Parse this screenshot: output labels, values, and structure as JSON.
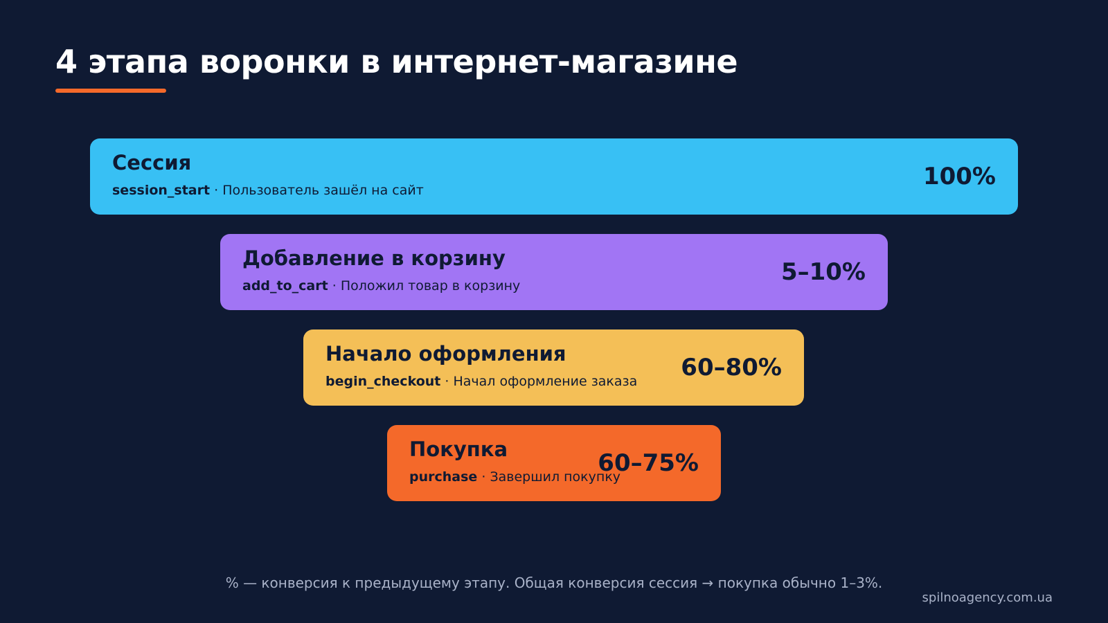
{
  "title": "4 этапа воронки в интернет-магазине",
  "colors": {
    "background": "#0f1a33",
    "accent": "#f4692a",
    "text_dark": "#0f1a33"
  },
  "stages": [
    {
      "name": "Сессия",
      "event": "session_start",
      "separator": " · ",
      "description": "Пользователь зашёл на сайт",
      "percent": "100%",
      "color": "#38c0f4"
    },
    {
      "name": "Добавление в корзину",
      "event": "add_to_cart",
      "separator": " · ",
      "description": "Положил товар в корзину",
      "percent": "5–10%",
      "color": "#a175f4"
    },
    {
      "name": "Начало оформления",
      "event": "begin_checkout",
      "separator": " · ",
      "description": "Начал оформление заказа",
      "percent": "60–80%",
      "color": "#f4bf57"
    },
    {
      "name": "Покупка",
      "event": "purchase",
      "separator": " · ",
      "description": "Завершил покупку",
      "percent": "60–75%",
      "color": "#f4692a"
    }
  ],
  "footnote": "% — конверсия к предыдущему этапу. Общая конверсия сессия → покупка обычно 1–3%.",
  "brand": "spilnoagency.com.ua"
}
